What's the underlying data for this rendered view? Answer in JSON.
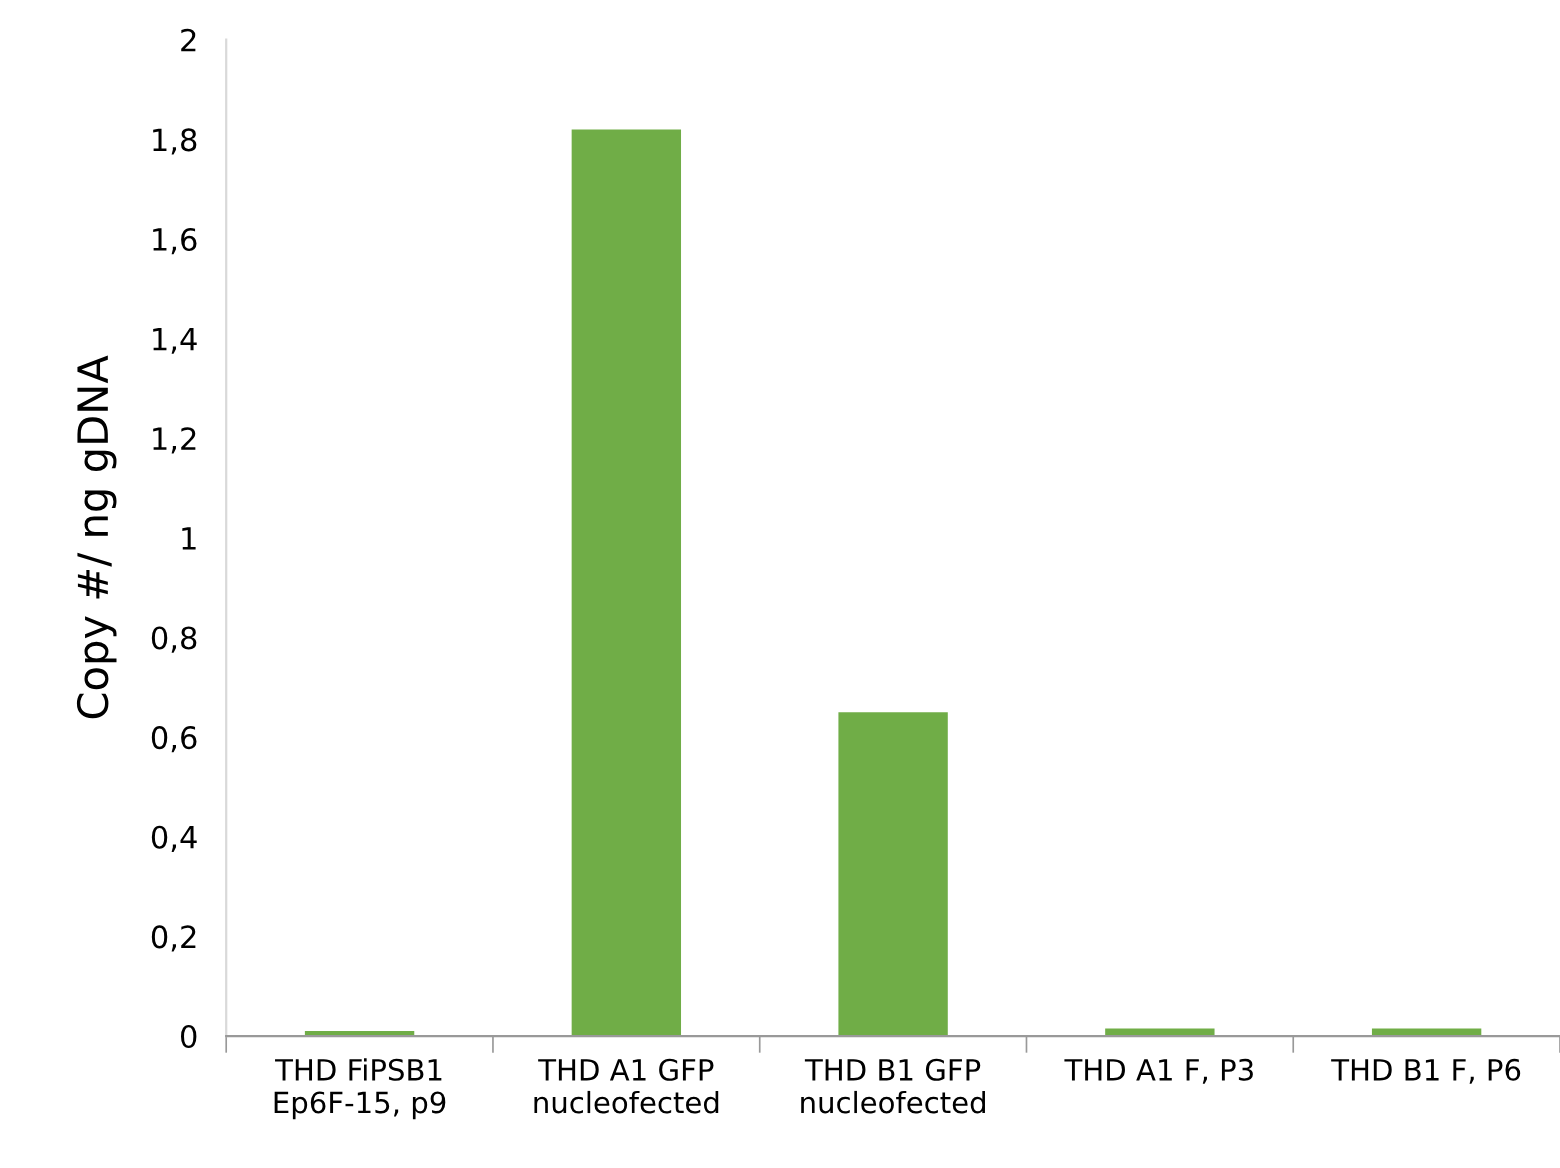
{
  "chart_data": {
    "type": "bar",
    "ylabel": "Copy #/ ng gDNA",
    "categories": [
      "THD FiPSB1\nEp6F-15, p9",
      "THD A1 GFP\nnucleofected",
      "THD B1 GFP\nnucleofected",
      "THD A1 F, P3",
      "THD B1 F, P6"
    ],
    "values": [
      0.01,
      1.82,
      0.65,
      0.015,
      0.015
    ],
    "color": "#70ad47",
    "ylim": [
      0,
      2
    ],
    "yticks": [
      0,
      {
        "value": 0.2,
        "label": "0,2"
      },
      {
        "value": 0.4,
        "label": "0,4"
      },
      {
        "value": 0.6,
        "label": "0,6"
      },
      {
        "value": 0.8,
        "label": "0,8"
      },
      1,
      {
        "value": 1.2,
        "label": "1,2"
      },
      {
        "value": 1.4,
        "label": "1,4"
      },
      {
        "value": 1.6,
        "label": "1,6"
      },
      {
        "value": 1.8,
        "label": "1,8"
      },
      2
    ],
    "grid": false,
    "legend": false
  }
}
